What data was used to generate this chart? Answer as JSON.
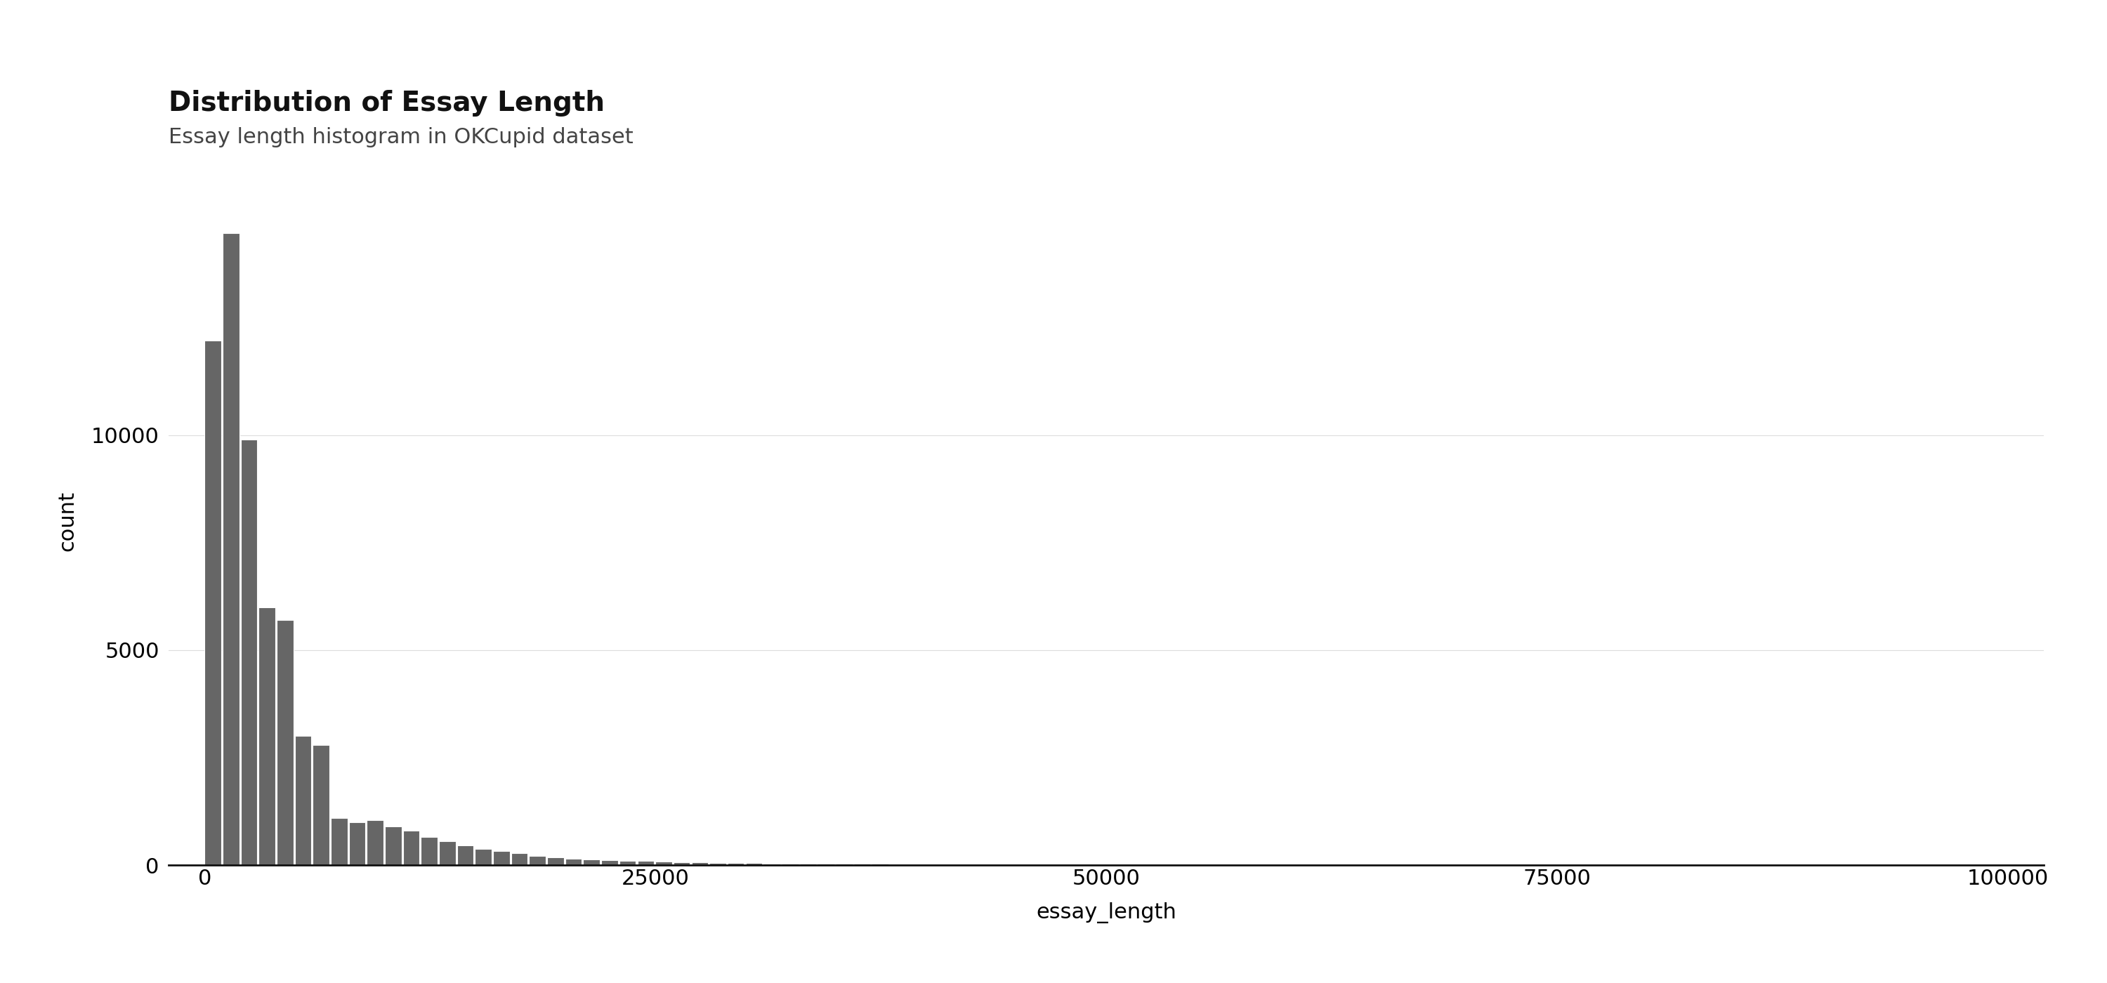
{
  "title": "Distribution of Essay Length",
  "subtitle": "Essay length histogram in OKCupid dataset",
  "xlabel": "essay_length",
  "ylabel": "count",
  "bar_color": "#666666",
  "background_color": "#ffffff",
  "xlim": [
    -2000,
    102000
  ],
  "ylim": [
    0,
    16000
  ],
  "xticks": [
    0,
    25000,
    50000,
    75000,
    100000
  ],
  "yticks": [
    0,
    5000,
    10000
  ],
  "title_fontsize": 28,
  "subtitle_fontsize": 22,
  "axis_label_fontsize": 22,
  "tick_fontsize": 22,
  "bin_width": 1000,
  "num_bins": 100,
  "bar_heights": [
    12200,
    14700,
    9900,
    6000,
    5700,
    3000,
    2800,
    1100,
    1000,
    1050,
    900,
    800,
    650,
    550,
    450,
    380,
    320,
    270,
    220,
    180,
    150,
    130,
    110,
    100,
    90,
    80,
    70,
    60,
    55,
    50,
    45,
    40,
    38,
    35,
    32,
    30,
    28,
    26,
    24,
    22,
    20,
    18,
    17,
    16,
    15,
    14,
    13,
    12,
    11,
    10,
    9,
    9,
    8,
    8,
    7,
    7,
    6,
    6,
    5,
    5,
    5,
    4,
    4,
    4,
    3,
    3,
    3,
    3,
    2,
    2,
    2,
    2,
    2,
    2,
    2,
    1,
    1,
    1,
    1,
    1,
    1,
    1,
    1,
    1,
    1,
    1,
    1,
    0,
    0,
    0,
    0,
    0,
    0,
    0,
    0,
    0,
    0,
    0,
    0,
    0
  ]
}
